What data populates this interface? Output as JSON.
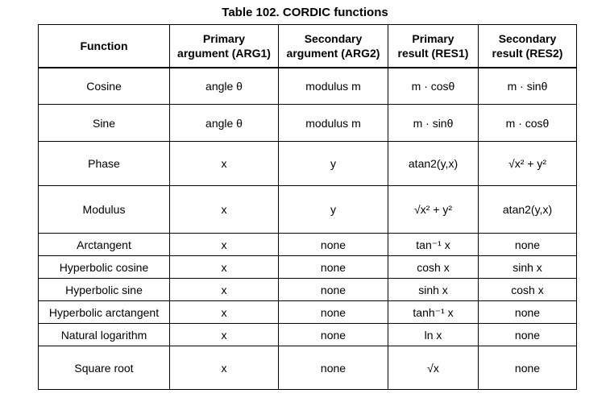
{
  "title": "Table 102. CORDIC functions",
  "headers": {
    "function": "Function",
    "arg1_line1": "Primary",
    "arg1_line2": "argument (ARG1)",
    "arg2_line1": "Secondary",
    "arg2_line2": "argument (ARG2)",
    "res1_line1": "Primary",
    "res1_line2": "result (RES1)",
    "res2_line1": "Secondary",
    "res2_line2": "result (RES2)"
  },
  "rows": [
    {
      "function": "Cosine",
      "arg1": "angle θ",
      "arg2": "modulus m",
      "res1": "m · cosθ",
      "res2": "m · sinθ"
    },
    {
      "function": "Sine",
      "arg1": "angle θ",
      "arg2": "modulus m",
      "res1": "m · sinθ",
      "res2": "m · cosθ"
    },
    {
      "function": "Phase",
      "arg1": "x",
      "arg2": "y",
      "res1": "atan2(y,x)",
      "res2": "√x² + y²"
    },
    {
      "function": "Modulus",
      "arg1": "x",
      "arg2": "y",
      "res1": "√x² + y²",
      "res2": "atan2(y,x)"
    },
    {
      "function": "Arctangent",
      "arg1": "x",
      "arg2": "none",
      "res1": "tan⁻¹ x",
      "res2": "none"
    },
    {
      "function": "Hyperbolic cosine",
      "arg1": "x",
      "arg2": "none",
      "res1": "cosh x",
      "res2": "sinh x"
    },
    {
      "function": "Hyperbolic sine",
      "arg1": "x",
      "arg2": "none",
      "res1": "sinh x",
      "res2": "cosh x"
    },
    {
      "function": "Hyperbolic arctangent",
      "arg1": "x",
      "arg2": "none",
      "res1": "tanh⁻¹ x",
      "res2": "none"
    },
    {
      "function": "Natural logarithm",
      "arg1": "x",
      "arg2": "none",
      "res1": "ln x",
      "res2": "none"
    },
    {
      "function": "Square root",
      "arg1": "x",
      "arg2": "none",
      "res1": "√x",
      "res2": "none"
    }
  ]
}
